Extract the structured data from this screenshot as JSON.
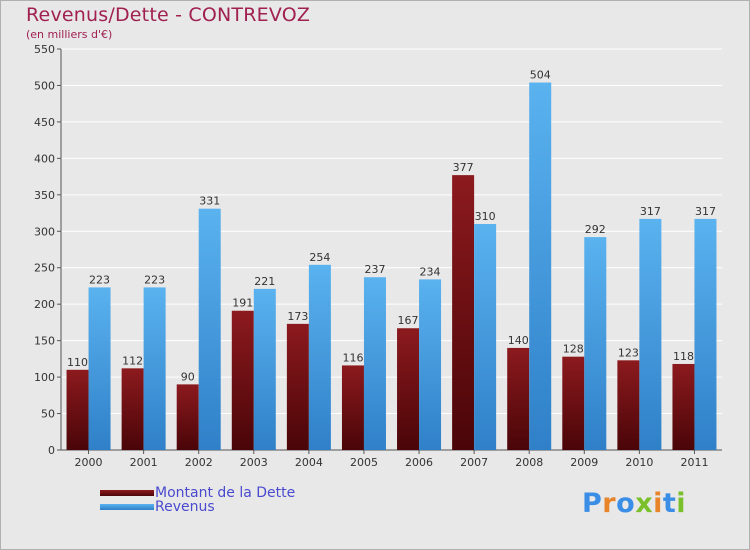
{
  "chart_data": {
    "type": "bar",
    "title": "Revenus/Dette - CONTREVOZ",
    "subtitle": "(en milliers d'€)",
    "categories": [
      "2000",
      "2001",
      "2002",
      "2003",
      "2004",
      "2005",
      "2006",
      "2007",
      "2008",
      "2009",
      "2010",
      "2011"
    ],
    "series": [
      {
        "name": "Montant de la Dette",
        "color": "#7a0f12",
        "values": [
          110,
          112,
          90,
          191,
          173,
          116,
          167,
          377,
          140,
          128,
          123,
          118
        ]
      },
      {
        "name": "Revenus",
        "color": "#4aa3e6",
        "values": [
          223,
          223,
          331,
          221,
          254,
          237,
          234,
          310,
          504,
          292,
          317,
          317
        ]
      }
    ],
    "ylim": [
      0,
      550
    ],
    "yticks": [
      0,
      50,
      100,
      150,
      200,
      250,
      300,
      350,
      400,
      450,
      500,
      550
    ],
    "grid": true,
    "legend_position": "bottom-left"
  },
  "logo": {
    "text": "Proxiti",
    "letter_colors": [
      "#3a8ee6",
      "#e8842a",
      "#3a8ee6",
      "#7ac02a",
      "#e8842a",
      "#3a8ee6",
      "#7ac02a"
    ]
  }
}
